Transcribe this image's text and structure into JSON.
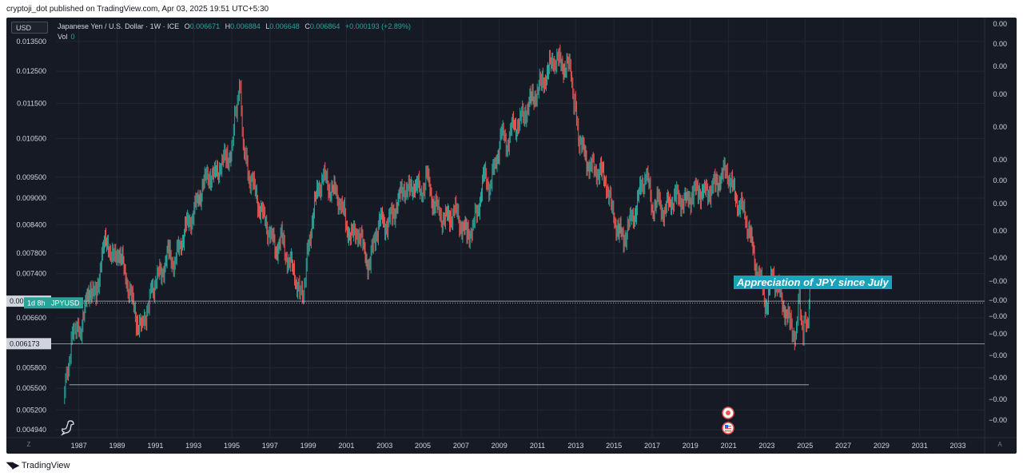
{
  "header": {
    "published": "cryptoji_dot published on TradingView.com, Apr 03, 2025 19:51 UTC+5:30"
  },
  "toolbar": {
    "currency_button": "USD",
    "z_button": "Z",
    "a_button": "A"
  },
  "legend": {
    "symbol": "Japanese Yen / U.S. Dollar · 1W · ICE",
    "open_label": "O",
    "open": "0.006671",
    "high_label": "H",
    "high": "0.006884",
    "low_label": "L",
    "low": "0.006648",
    "close_label": "C",
    "close": "0.006864",
    "change": "+0.000193 (+2.89%)",
    "vol_label": "Vol",
    "vol": "0"
  },
  "price_tags": {
    "high_tag": "0.006892",
    "current_countdown": "1d 8h",
    "current_symbol": "JPYUSD",
    "low_tag": "0.006173"
  },
  "annotation": "Appreciation of JPY since July",
  "right_scale_labels": [
    "0.00",
    "0.00",
    "0.00",
    "0.00",
    "0.00",
    "0.00",
    "0.00",
    "0.00",
    "0.00",
    "−0.00",
    "−0.00",
    "−0.00",
    "−0.00",
    "−0.00",
    "−0.00",
    "−0.00",
    "−0.00",
    "−0.00"
  ],
  "footer": {
    "brand": "TradingView"
  },
  "colors": {
    "background": "#161a25",
    "up": "#26a69a",
    "down": "#ef5350",
    "price_line": "#d1d4dc",
    "annotation_bg": "#1aa3b8"
  },
  "chart_data": {
    "type": "line",
    "title": "Japanese Yen / U.S. Dollar · 1W · ICE",
    "log_scale": true,
    "x_ticks": [
      1987,
      1989,
      1991,
      1993,
      1995,
      1997,
      1999,
      2001,
      2003,
      2005,
      2007,
      2009,
      2011,
      2013,
      2015,
      2017,
      2019,
      2021,
      2023,
      2025,
      2027,
      2029,
      2031,
      2033
    ],
    "y_ticks": [
      0.0135,
      0.0125,
      0.0115,
      0.0105,
      0.0095,
      0.009,
      0.0084,
      0.0078,
      0.0074,
      0.0066,
      0.0058,
      0.0055,
      0.0052,
      0.00494
    ],
    "xlim": [
      1985.8,
      2034.4
    ],
    "ylim": [
      0.00484,
      0.0143
    ],
    "grid": true,
    "series": [
      {
        "x": [
          1986.2,
          1986.4,
          1986.6,
          1986.8,
          1987.0,
          1987.3,
          1987.6,
          1987.9,
          1988.2,
          1988.5,
          1988.8,
          1989.1,
          1989.4,
          1989.7,
          1990.0,
          1990.3,
          1990.6,
          1990.8,
          1991.1,
          1991.4,
          1991.7,
          1992.0,
          1992.3,
          1992.6,
          1992.9,
          1993.2,
          1993.5,
          1993.8,
          1994.1,
          1994.4,
          1994.7,
          1995.0,
          1995.2,
          1995.4,
          1995.6,
          1995.8,
          1996.1,
          1996.4,
          1996.7,
          1997.0,
          1997.3,
          1997.6,
          1997.9,
          1998.2,
          1998.5,
          1998.7,
          1998.9,
          1999.2,
          1999.5,
          1999.8,
          2000.1,
          2000.4,
          2000.7,
          2001.0,
          2001.3,
          2001.6,
          2001.9,
          2002.2,
          2002.5,
          2002.8,
          2003.1,
          2003.4,
          2003.7,
          2004.0,
          2004.3,
          2004.6,
          2004.9,
          2005.2,
          2005.5,
          2005.8,
          2006.1,
          2006.4,
          2006.7,
          2007.0,
          2007.3,
          2007.6,
          2007.9,
          2008.2,
          2008.5,
          2008.8,
          2009.1,
          2009.4,
          2009.7,
          2010.0,
          2010.3,
          2010.6,
          2010.9,
          2011.2,
          2011.5,
          2011.8,
          2012.1,
          2012.4,
          2012.7,
          2012.9,
          2013.1,
          2013.4,
          2013.7,
          2014.0,
          2014.3,
          2014.6,
          2014.9,
          2015.2,
          2015.5,
          2015.8,
          2016.1,
          2016.4,
          2016.7,
          2017.0,
          2017.3,
          2017.6,
          2017.9,
          2018.2,
          2018.5,
          2018.8,
          2019.1,
          2019.4,
          2019.7,
          2020.0,
          2020.3,
          2020.6,
          2020.9,
          2021.2,
          2021.5,
          2021.8,
          2022.1,
          2022.4,
          2022.7,
          2023.0,
          2023.3,
          2023.6,
          2023.9,
          2024.2,
          2024.5,
          2024.7,
          2024.9,
          2025.1,
          2025.25
        ],
        "y": [
          0.00535,
          0.0057,
          0.0062,
          0.0065,
          0.0063,
          0.0067,
          0.0072,
          0.0069,
          0.0078,
          0.0081,
          0.0076,
          0.0079,
          0.0074,
          0.007,
          0.0066,
          0.0064,
          0.0068,
          0.0071,
          0.0073,
          0.0075,
          0.0078,
          0.0076,
          0.008,
          0.0083,
          0.0086,
          0.0089,
          0.0093,
          0.0096,
          0.0095,
          0.0098,
          0.01,
          0.0101,
          0.0112,
          0.0121,
          0.0104,
          0.0097,
          0.0093,
          0.0089,
          0.0085,
          0.0082,
          0.0079,
          0.0081,
          0.0077,
          0.0075,
          0.0071,
          0.0069,
          0.0076,
          0.0085,
          0.0092,
          0.0095,
          0.0093,
          0.0091,
          0.0089,
          0.0084,
          0.0081,
          0.0083,
          0.0079,
          0.0075,
          0.0082,
          0.0085,
          0.0084,
          0.0086,
          0.0089,
          0.0093,
          0.0091,
          0.0094,
          0.0091,
          0.0095,
          0.009,
          0.0087,
          0.0085,
          0.0086,
          0.0087,
          0.0084,
          0.0082,
          0.0083,
          0.0088,
          0.0095,
          0.0093,
          0.0098,
          0.0106,
          0.0104,
          0.0108,
          0.0109,
          0.0112,
          0.0115,
          0.0118,
          0.0121,
          0.0124,
          0.0129,
          0.0128,
          0.0127,
          0.0126,
          0.0117,
          0.0107,
          0.0101,
          0.0098,
          0.0097,
          0.0096,
          0.0094,
          0.0087,
          0.0083,
          0.0081,
          0.0084,
          0.0087,
          0.0092,
          0.0096,
          0.0088,
          0.0089,
          0.0087,
          0.0089,
          0.009,
          0.009,
          0.0089,
          0.0091,
          0.0092,
          0.0091,
          0.0092,
          0.0093,
          0.0095,
          0.0097,
          0.0092,
          0.0089,
          0.0087,
          0.0082,
          0.0076,
          0.0072,
          0.0068,
          0.0074,
          0.0071,
          0.0068,
          0.0065,
          0.0063,
          0.0069,
          0.0064,
          0.0065,
          0.00686
        ]
      }
    ],
    "reference_lines": [
      0.006892,
      0.006173
    ],
    "horizontal_ray": {
      "x": [
        1986.5,
        2025.2
      ],
      "y": 0.00555
    }
  }
}
